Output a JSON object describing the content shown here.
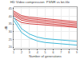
{
  "chart_data": {
    "type": "line",
    "title": "HD Video compression  PSNR vs bit-file",
    "xlabel": "Number of generations",
    "ylabel": "dB",
    "x": [
      1,
      2,
      3,
      4,
      5,
      6,
      7,
      8,
      9
    ],
    "series": [
      {
        "color": "#d44040",
        "values": [
          43.5,
          40.5,
          39.5,
          39.0,
          38.5,
          38.0,
          37.5,
          37.0,
          36.5
        ]
      },
      {
        "color": "#d44040",
        "values": [
          42.5,
          39.5,
          38.5,
          38.0,
          37.5,
          37.0,
          36.5,
          36.0,
          35.5
        ]
      },
      {
        "color": "#d44040",
        "values": [
          41.5,
          38.5,
          37.5,
          37.0,
          36.5,
          36.0,
          35.5,
          35.0,
          34.5
        ]
      },
      {
        "color": "#d44040",
        "values": [
          40.5,
          37.5,
          36.5,
          36.0,
          35.5,
          35.0,
          34.5,
          34.0,
          33.5
        ]
      },
      {
        "color": "#d44040",
        "values": [
          39.0,
          36.0,
          35.2,
          34.8,
          34.4,
          34.0,
          33.6,
          33.2,
          32.8
        ]
      },
      {
        "color": "#40b8d8",
        "values": [
          39.5,
          32.0,
          28.5,
          26.5,
          25.5,
          25.0,
          24.5,
          24.2,
          23.8
        ]
      },
      {
        "color": "#40b8d8",
        "values": [
          37.5,
          29.5,
          26.0,
          24.0,
          23.0,
          22.5,
          22.0,
          21.7,
          21.3
        ]
      }
    ],
    "xlim": [
      1,
      9
    ],
    "ylim": [
      19,
      46
    ],
    "xticks": [
      1,
      2,
      3,
      4,
      5,
      6,
      7,
      8,
      9
    ],
    "yticks": [
      20,
      25,
      30,
      35,
      40,
      45
    ],
    "grid": true
  }
}
